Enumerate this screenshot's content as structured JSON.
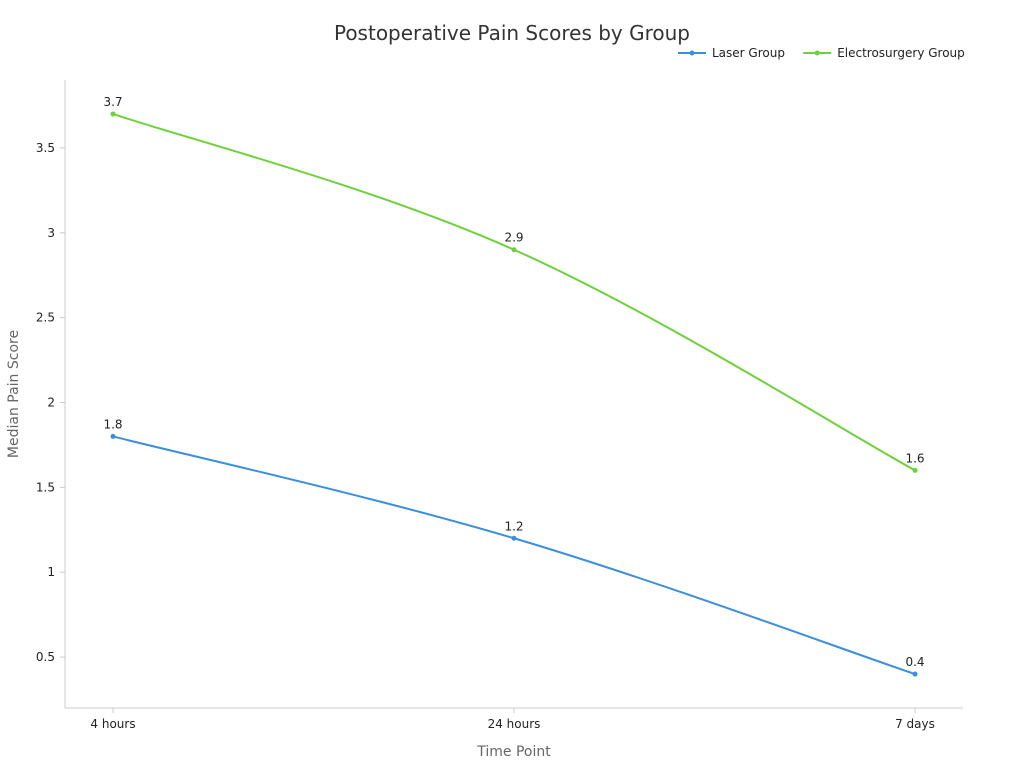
{
  "chart_data": {
    "type": "line",
    "title": "Postoperative Pain Scores by Group",
    "xlabel": "Time Point",
    "ylabel": "Median Pain Score",
    "categories": [
      "4 hours",
      "24 hours",
      "7 days"
    ],
    "series": [
      {
        "name": "Laser Group",
        "color": "#3b8fdd",
        "values": [
          1.8,
          1.2,
          0.4
        ]
      },
      {
        "name": "Electrosurgery Group",
        "color": "#6ed13c",
        "values": [
          3.7,
          2.9,
          1.6
        ]
      }
    ],
    "ylim": [
      0.2,
      3.9
    ],
    "yticks": [
      "0.5",
      "1",
      "1.5",
      "2",
      "2.5",
      "3",
      "3.5"
    ],
    "grid": false,
    "legend_position": "top-right"
  }
}
